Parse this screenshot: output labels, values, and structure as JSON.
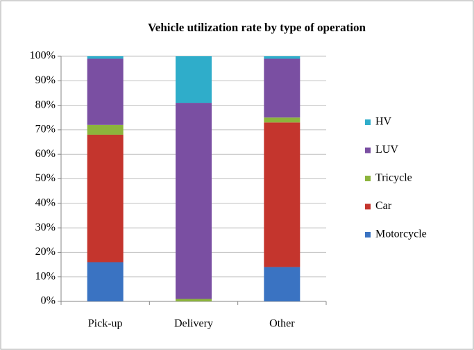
{
  "chart_data": {
    "type": "stacked_bar",
    "title": "Vehicle utilization rate by type of operation",
    "categories": [
      "Pick-up",
      "Delivery",
      "Other"
    ],
    "series": [
      {
        "name": "Motorcycle",
        "color": "#3a73c2",
        "values": [
          16,
          0,
          14
        ]
      },
      {
        "name": "Car",
        "color": "#c4352d",
        "values": [
          52,
          0,
          59
        ]
      },
      {
        "name": "Tricycle",
        "color": "#8cb43c",
        "values": [
          4,
          1,
          2
        ]
      },
      {
        "name": "LUV",
        "color": "#7a4fa2",
        "values": [
          27,
          80,
          24
        ]
      },
      {
        "name": "HV",
        "color": "#2fadca",
        "values": [
          1,
          19,
          1
        ]
      }
    ],
    "ylim": [
      0,
      100
    ],
    "yticks": [
      {
        "value": 0,
        "label": "0%"
      },
      {
        "value": 10,
        "label": "10%"
      },
      {
        "value": 20,
        "label": "20%"
      },
      {
        "value": 30,
        "label": "30%"
      },
      {
        "value": 40,
        "label": "40%"
      },
      {
        "value": 50,
        "label": "50%"
      },
      {
        "value": 60,
        "label": "60%"
      },
      {
        "value": 70,
        "label": "70%"
      },
      {
        "value": 80,
        "label": "80%"
      },
      {
        "value": 90,
        "label": "90%"
      },
      {
        "value": 100,
        "label": "100%"
      }
    ],
    "grid": true,
    "legend": "right"
  }
}
